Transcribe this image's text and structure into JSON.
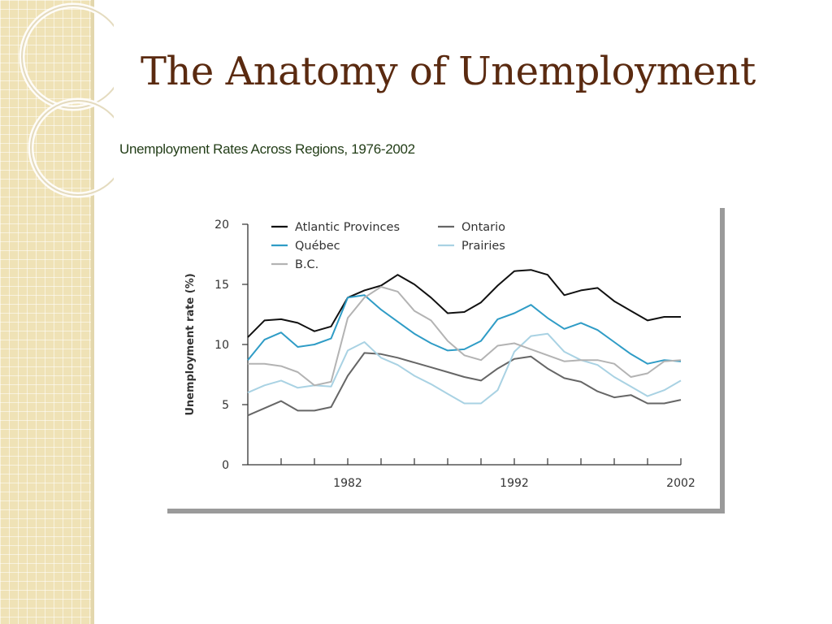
{
  "slide": {
    "title": "The Anatomy of Unemployment",
    "subtitle": "Unemployment Rates Across Regions, 1976-2002"
  },
  "colors": {
    "title": "#5a2a10",
    "subtitle": "#233e18",
    "sidebar": "#efe2b6"
  },
  "chart_data": {
    "type": "line",
    "ylabel": "Unemployment rate (%)",
    "xlabel": "",
    "xlim": [
      1976,
      2002
    ],
    "ylim": [
      0,
      20
    ],
    "x_ticks": [
      1982,
      1992,
      2002
    ],
    "y_ticks": [
      0,
      5,
      10,
      15,
      20
    ],
    "grid": false,
    "legend_position": "top",
    "x": [
      1976,
      1977,
      1978,
      1979,
      1980,
      1981,
      1982,
      1983,
      1984,
      1985,
      1986,
      1987,
      1988,
      1989,
      1990,
      1991,
      1992,
      1993,
      1994,
      1995,
      1996,
      1997,
      1998,
      1999,
      2000,
      2001,
      2002
    ],
    "series": [
      {
        "name": "Atlantic Provinces",
        "color": "#111111",
        "values": [
          10.6,
          12.0,
          12.1,
          11.8,
          11.1,
          11.5,
          13.9,
          14.5,
          14.9,
          15.8,
          15.0,
          13.9,
          12.6,
          12.7,
          13.5,
          14.9,
          16.1,
          16.2,
          15.8,
          14.1,
          14.5,
          14.7,
          13.6,
          12.8,
          12.0,
          12.3,
          12.3
        ]
      },
      {
        "name": "Ontario",
        "color": "#666666",
        "values": [
          4.1,
          4.7,
          5.3,
          4.5,
          4.5,
          4.8,
          7.4,
          9.3,
          9.2,
          8.9,
          8.5,
          8.1,
          7.7,
          7.3,
          7.0,
          8.0,
          8.8,
          9.0,
          8.0,
          7.2,
          6.9,
          6.1,
          5.6,
          5.8,
          5.1,
          5.1,
          5.4
        ]
      },
      {
        "name": "Québec",
        "color": "#2f9cc6",
        "values": [
          8.7,
          10.4,
          11.0,
          9.8,
          10.0,
          10.5,
          13.9,
          14.1,
          12.9,
          11.9,
          10.9,
          10.1,
          9.5,
          9.6,
          10.3,
          12.1,
          12.6,
          13.3,
          12.2,
          11.3,
          11.8,
          11.2,
          10.2,
          9.2,
          8.4,
          8.7,
          8.6
        ]
      },
      {
        "name": "Prairies",
        "color": "#a9d2e3",
        "values": [
          6.0,
          6.6,
          7.0,
          6.4,
          6.6,
          6.5,
          9.5,
          10.2,
          8.9,
          8.3,
          7.4,
          6.7,
          5.9,
          5.1,
          5.1,
          6.2,
          9.4,
          10.7,
          10.9,
          9.4,
          8.7,
          8.3,
          7.3,
          6.5,
          5.7,
          6.2,
          7.0
        ]
      },
      {
        "name": "B.C.",
        "color": "#b3b3b3",
        "values": [
          8.4,
          8.4,
          8.2,
          7.7,
          6.6,
          6.9,
          12.2,
          13.9,
          14.8,
          14.4,
          12.8,
          12.0,
          10.3,
          9.1,
          8.7,
          9.9,
          10.1,
          9.6,
          9.1,
          8.6,
          8.7,
          8.7,
          8.4,
          7.3,
          7.6,
          8.6,
          8.7
        ]
      }
    ]
  }
}
